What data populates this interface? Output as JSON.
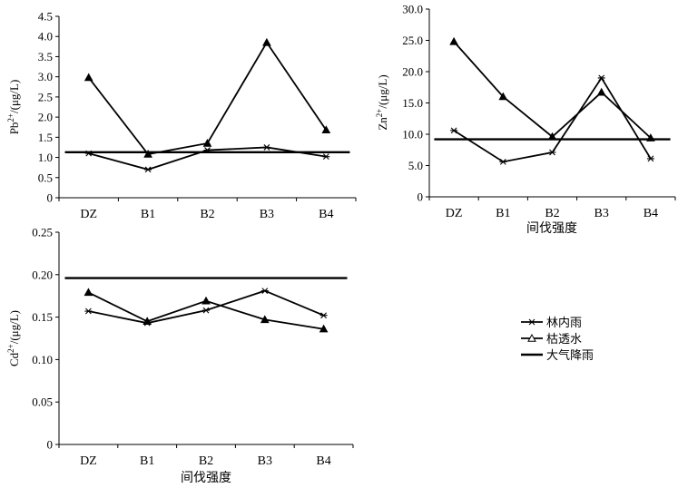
{
  "chart_data": [
    {
      "type": "line",
      "ylabel": "Pb2+/(μg/L)",
      "ylabel_main": "Pb",
      "ylabel_sup": "2+",
      "ylabel_rest": "/(μg/L)",
      "xlabel": "",
      "categories": [
        "DZ",
        "B1",
        "B2",
        "B3",
        "B4"
      ],
      "ylim": [
        0,
        4.5
      ],
      "yticks": [
        "0",
        "0.5",
        "1.0",
        "1.5",
        "2.0",
        "2.5",
        "3.0",
        "3.5",
        "4.0",
        "4.5"
      ],
      "series": [
        {
          "name": "林内雨",
          "marker": "star",
          "values": [
            1.1,
            0.7,
            1.18,
            1.25,
            1.02
          ]
        },
        {
          "name": "枯透水",
          "marker": "triangle",
          "values": [
            2.98,
            1.08,
            1.35,
            3.85,
            1.68
          ]
        },
        {
          "name": "大气降雨",
          "marker": "none",
          "values": [
            1.13,
            1.13,
            1.13,
            1.13,
            1.13
          ]
        }
      ]
    },
    {
      "type": "line",
      "ylabel": "Zn2+/(μg/L)",
      "ylabel_main": "Zn",
      "ylabel_sup": "2+",
      "ylabel_rest": "/(μg/L)",
      "xlabel": "间伐强度",
      "categories": [
        "DZ",
        "B1",
        "B2",
        "B3",
        "B4"
      ],
      "ylim": [
        0,
        30
      ],
      "yticks": [
        "0",
        "5.0",
        "10.0",
        "15.0",
        "20.0",
        "25.0",
        "30.0"
      ],
      "series": [
        {
          "name": "林内雨",
          "marker": "star",
          "values": [
            10.6,
            5.6,
            7.1,
            19.0,
            6.1
          ]
        },
        {
          "name": "枯透水",
          "marker": "triangle",
          "values": [
            24.8,
            16.0,
            9.6,
            16.7,
            9.4
          ]
        },
        {
          "name": "大气降雨",
          "marker": "none",
          "values": [
            9.2,
            9.2,
            9.2,
            9.2,
            9.2
          ]
        }
      ]
    },
    {
      "type": "line",
      "ylabel": "Cd2+/(μg/L)",
      "ylabel_main": "Cd",
      "ylabel_sup": "2+",
      "ylabel_rest": "/(μg/L)",
      "xlabel": "间伐强度",
      "categories": [
        "DZ",
        "B1",
        "B2",
        "B3",
        "B4"
      ],
      "ylim": [
        0,
        0.25
      ],
      "yticks": [
        "0",
        "0.05",
        "0.10",
        "0.15",
        "0.20",
        "0.25"
      ],
      "series": [
        {
          "name": "林内雨",
          "marker": "star",
          "values": [
            0.157,
            0.143,
            0.158,
            0.181,
            0.152
          ]
        },
        {
          "name": "枯透水",
          "marker": "triangle",
          "values": [
            0.179,
            0.145,
            0.169,
            0.147,
            0.136
          ]
        },
        {
          "name": "大气降雨",
          "marker": "none",
          "values": [
            0.196,
            0.196,
            0.196,
            0.196,
            0.196
          ]
        }
      ]
    }
  ],
  "legend": {
    "placement": "lower-right",
    "items": [
      {
        "label": "林内雨",
        "marker": "star"
      },
      {
        "label": "枯透水",
        "marker": "triangle"
      },
      {
        "label": "大气降雨",
        "marker": "none"
      }
    ]
  },
  "colors": {
    "line": "#000000",
    "background": "#ffffff"
  }
}
